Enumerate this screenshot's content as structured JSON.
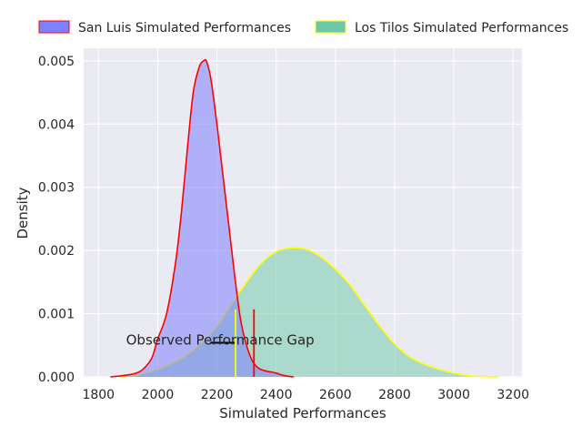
{
  "chart_data": {
    "type": "area",
    "title": "",
    "xlabel": "Simulated Performances",
    "ylabel": "Density",
    "xlim": [
      1750,
      3230
    ],
    "ylim": [
      0,
      0.0052
    ],
    "xticks": [
      1800,
      2000,
      2200,
      2400,
      2600,
      2800,
      3000,
      3200
    ],
    "yticks": [
      0.0,
      0.001,
      0.002,
      0.003,
      0.004,
      0.005
    ],
    "xtick_labels": [
      "1800",
      "2000",
      "2200",
      "2400",
      "2600",
      "2800",
      "3000",
      "3200"
    ],
    "ytick_labels": [
      "0.000",
      "0.001",
      "0.002",
      "0.003",
      "0.004",
      "0.005"
    ],
    "grid": true,
    "legend_position": "top",
    "series": [
      {
        "name": "San Luis Simulated Performances",
        "fill": "#8080ff",
        "edge": "#ff0000",
        "x": [
          1840,
          1880,
          1920,
          1950,
          1980,
          2000,
          2030,
          2060,
          2080,
          2100,
          2120,
          2140,
          2155,
          2165,
          2180,
          2200,
          2220,
          2240,
          2260,
          2280,
          2300,
          2320,
          2340,
          2360,
          2380,
          2400,
          2420,
          2440,
          2460
        ],
        "y": [
          0.0,
          2e-05,
          5e-05,
          0.00012,
          0.0003,
          0.0006,
          0.001,
          0.0018,
          0.0026,
          0.0036,
          0.0045,
          0.0049,
          0.005,
          0.00499,
          0.0047,
          0.004,
          0.0032,
          0.0024,
          0.0016,
          0.0009,
          0.0005,
          0.00025,
          0.00014,
          0.0001,
          8e-05,
          6e-05,
          3e-05,
          1e-05,
          0.0
        ]
      },
      {
        "name": "Los Tilos Simulated Performances",
        "fill": "#6cc7a4",
        "edge": "#ffff00",
        "x": [
          1870,
          1920,
          1960,
          2000,
          2050,
          2100,
          2150,
          2200,
          2250,
          2300,
          2350,
          2400,
          2450,
          2500,
          2550,
          2600,
          2650,
          2700,
          2750,
          2800,
          2850,
          2900,
          2950,
          3000,
          3050,
          3100,
          3150
        ],
        "y": [
          0.0,
          2e-05,
          6e-05,
          0.00012,
          0.00022,
          0.00035,
          0.00055,
          0.0008,
          0.00115,
          0.0015,
          0.0018,
          0.00198,
          0.00204,
          0.00202,
          0.0019,
          0.0017,
          0.00145,
          0.00112,
          0.0008,
          0.00052,
          0.00032,
          0.0002,
          0.00012,
          6e-05,
          2e-05,
          5e-06,
          0.0
        ]
      }
    ],
    "markers": [
      {
        "x": 2263,
        "y_top": 0.00107,
        "color": "#ffff00"
      },
      {
        "x": 2325,
        "y_top": 0.00107,
        "color": "#ff0000"
      }
    ],
    "gap_bar": {
      "x1": 2263,
      "x2": 2325,
      "y": 0.00054,
      "color": "#000000"
    },
    "annotation": {
      "text": "Observed Performance Gap",
      "x": 2294,
      "y": 0.00057
    }
  }
}
